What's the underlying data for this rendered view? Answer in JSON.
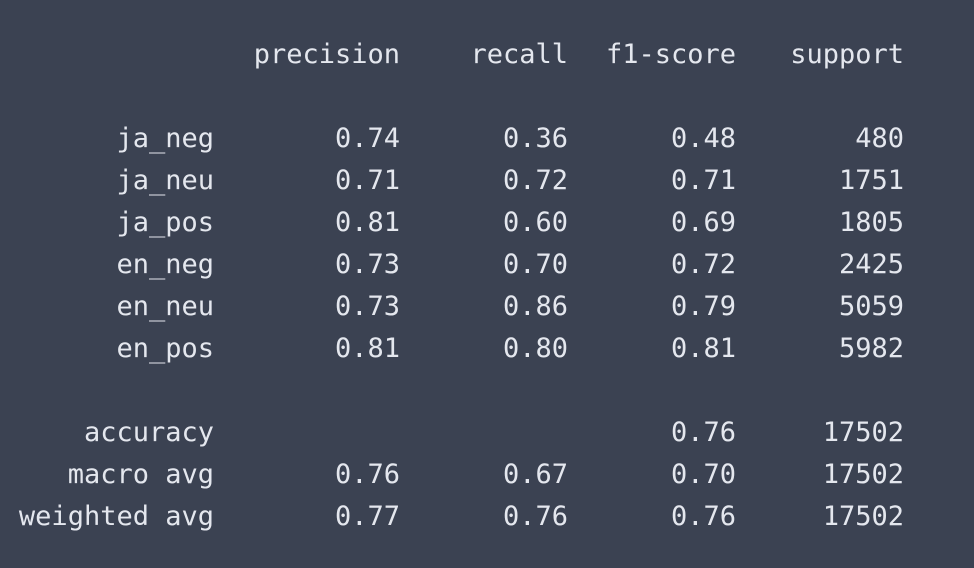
{
  "columns": {
    "precision": "precision",
    "recall": "recall",
    "f1": "f1-score",
    "support": "support"
  },
  "classes": [
    {
      "label": "ja_neg",
      "precision": "0.74",
      "recall": "0.36",
      "f1": "0.48",
      "support": "480"
    },
    {
      "label": "ja_neu",
      "precision": "0.71",
      "recall": "0.72",
      "f1": "0.71",
      "support": "1751"
    },
    {
      "label": "ja_pos",
      "precision": "0.81",
      "recall": "0.60",
      "f1": "0.69",
      "support": "1805"
    },
    {
      "label": "en_neg",
      "precision": "0.73",
      "recall": "0.70",
      "f1": "0.72",
      "support": "2425"
    },
    {
      "label": "en_neu",
      "precision": "0.73",
      "recall": "0.86",
      "f1": "0.79",
      "support": "5059"
    },
    {
      "label": "en_pos",
      "precision": "0.81",
      "recall": "0.80",
      "f1": "0.81",
      "support": "5982"
    }
  ],
  "summary": [
    {
      "label": "accuracy",
      "precision": "",
      "recall": "",
      "f1": "0.76",
      "support": "17502"
    },
    {
      "label": "macro avg",
      "precision": "0.76",
      "recall": "0.67",
      "f1": "0.70",
      "support": "17502"
    },
    {
      "label": "weighted avg",
      "precision": "0.77",
      "recall": "0.76",
      "f1": "0.76",
      "support": "17502"
    }
  ],
  "colors": {
    "background": "#3b4252",
    "text": "#e4e7ee"
  }
}
